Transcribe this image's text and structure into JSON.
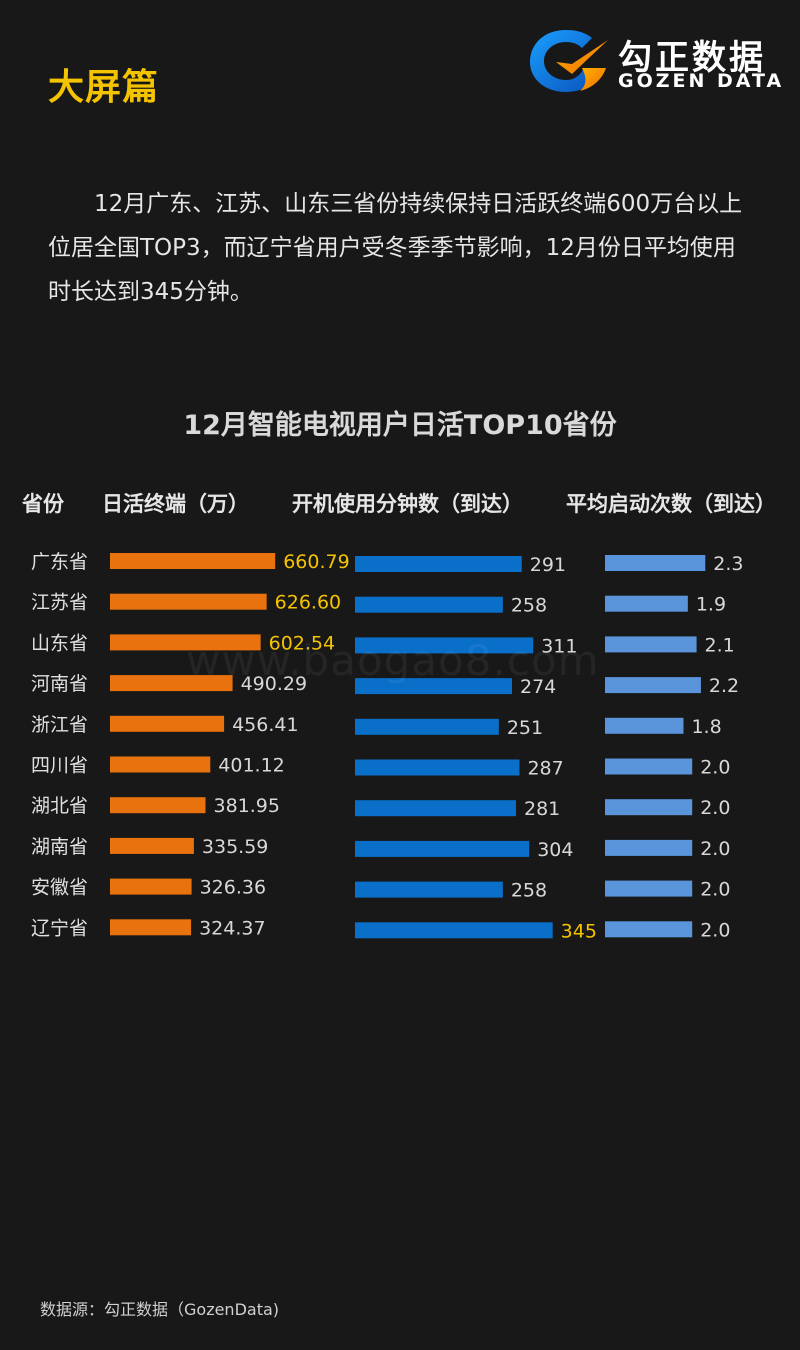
{
  "header": {
    "section_title": "大屏篇",
    "logo_cn": "勾正数据",
    "logo_en": "GOZEN DATA"
  },
  "intro_text": "12月广东、江苏、山东三省份持续保持日活跃终端600万台以上位居全国TOP3，而辽宁省用户受冬季季节影响，12月份日平均使用时长达到345分钟。",
  "chart_data": {
    "type": "bar",
    "title": "12月智能电视用户日活TOP10省份",
    "columns": {
      "category": "省份",
      "daily_active": "日活终端（万）",
      "minutes": "开机使用分钟数（到达）",
      "launches": "平均启动次数（到达）"
    },
    "categories": [
      "广东省",
      "江苏省",
      "山东省",
      "河南省",
      "浙江省",
      "四川省",
      "湖北省",
      "湖南省",
      "安徽省",
      "辽宁省"
    ],
    "series": [
      {
        "name": "日活终端（万）",
        "color": "#e8730e",
        "label_color": "#f5c400",
        "highlight": [
          0,
          1,
          2
        ],
        "values": [
          660.79,
          626.6,
          602.54,
          490.29,
          456.41,
          401.12,
          381.95,
          335.59,
          326.36,
          324.37
        ],
        "labels": [
          "660.79",
          "626.60",
          "602.54",
          "490.29",
          "456.41",
          "401.12",
          "381.95",
          "335.59",
          "326.36",
          "324.37"
        ]
      },
      {
        "name": "开机使用分钟数（到达）",
        "color": "#0a6fc9",
        "label_color": "#f5c400",
        "highlight": [
          9
        ],
        "values": [
          291,
          258,
          311,
          274,
          251,
          287,
          281,
          304,
          258,
          345
        ],
        "labels": [
          "291",
          "258",
          "311",
          "274",
          "251",
          "287",
          "281",
          "304",
          "258",
          "345"
        ]
      },
      {
        "name": "平均启动次数（到达）",
        "color": "#5a95dc",
        "label_color": "#f5c400",
        "highlight": [],
        "values": [
          2.3,
          1.9,
          2.1,
          2.2,
          1.8,
          2.0,
          2.0,
          2.0,
          2.0,
          2.0
        ],
        "labels": [
          "2.3",
          "1.9",
          "2.1",
          "2.2",
          "1.8",
          "2.0",
          "2.0",
          "2.0",
          "2.0",
          "2.0"
        ]
      }
    ]
  },
  "watermark": "www.baogao8.com",
  "source_text": "数据源：勾正数据（GozenData)"
}
